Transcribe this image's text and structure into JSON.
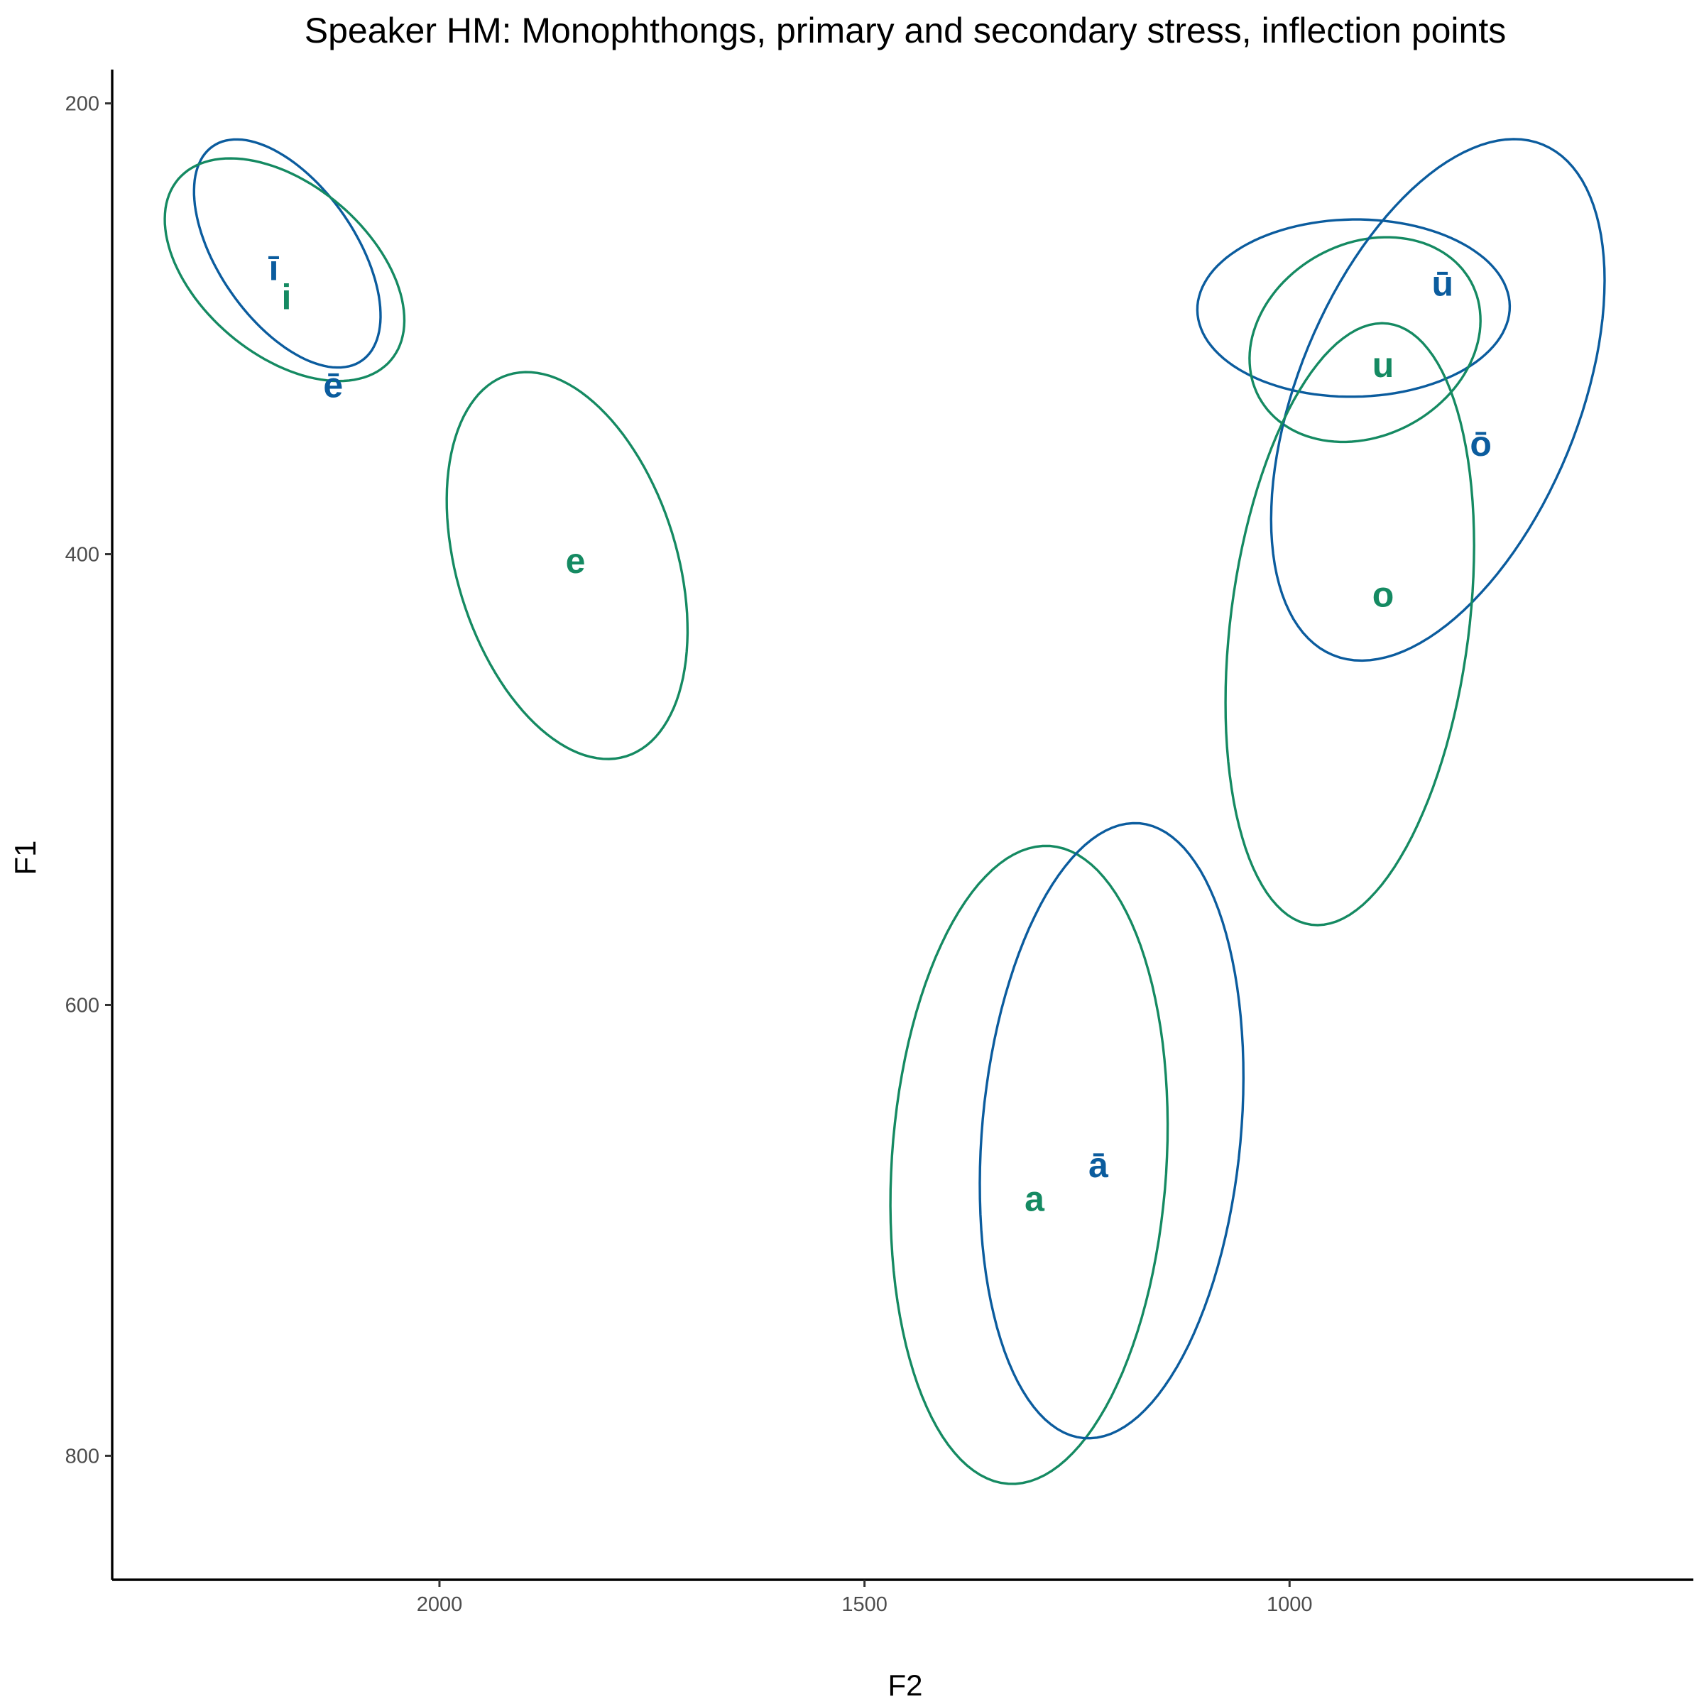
{
  "chart_data": {
    "type": "scatter",
    "title": "Speaker HM: Monophthongs, primary and secondary stress, inflection points",
    "xlabel": "F2",
    "ylabel": "F1",
    "x_reversed": true,
    "y_reversed": true,
    "xlim": [
      2385,
      525
    ],
    "ylim": [
      185,
      855
    ],
    "xticks": [
      2000,
      1500,
      1000
    ],
    "yticks": [
      200,
      400,
      600,
      800
    ],
    "grid": false,
    "legend": "none",
    "colors": {
      "primary": "#0B5C9E",
      "secondary": "#158A62"
    },
    "vowels": [
      {
        "label": "ī",
        "group": "primary",
        "f2": 2195,
        "f1": 273,
        "ellipse": [
          [
            2250,
            218
          ],
          [
            2150,
            232
          ],
          [
            2075,
            282
          ],
          [
            2120,
            318
          ],
          [
            2240,
            285
          ],
          [
            2290,
            247
          ]
        ]
      },
      {
        "label": "i",
        "group": "secondary",
        "f2": 2180,
        "f1": 286,
        "ellipse": [
          [
            2200,
            228
          ],
          [
            2100,
            250
          ],
          [
            2045,
            300
          ],
          [
            2110,
            324
          ],
          [
            2260,
            297
          ],
          [
            2320,
            264
          ]
        ]
      },
      {
        "label": "ē",
        "group": "primary",
        "f2": 2125,
        "f1": 325,
        "ellipse": [
          [
            1995,
            300
          ],
          [
            2080,
            320
          ],
          [
            2195,
            353
          ],
          [
            2265,
            366
          ],
          [
            2180,
            348
          ],
          [
            2060,
            316
          ]
        ]
      },
      {
        "label": "e",
        "group": "secondary",
        "f2": 1840,
        "f1": 403,
        "ellipse": [
          [
            1890,
            320
          ],
          [
            1710,
            420
          ],
          [
            1785,
            490
          ],
          [
            1950,
            442
          ],
          [
            1985,
            355
          ],
          [
            1935,
            322
          ]
        ]
      },
      {
        "label": "a",
        "group": "secondary",
        "f2": 1300,
        "f1": 686,
        "ellipse": [
          [
            1250,
            531
          ],
          [
            1145,
            655
          ],
          [
            1305,
            814
          ],
          [
            1400,
            790
          ],
          [
            1470,
            715
          ],
          [
            1370,
            551
          ]
        ]
      },
      {
        "label": "ā",
        "group": "primary",
        "f2": 1225,
        "f1": 671,
        "ellipse": [
          [
            1145,
            508
          ],
          [
            1070,
            590
          ],
          [
            1225,
            795
          ],
          [
            1310,
            762
          ],
          [
            1365,
            644
          ],
          [
            1210,
            548
          ]
        ]
      },
      {
        "label": "ū",
        "group": "primary",
        "f2": 820,
        "f1": 280,
        "ellipse": [
          [
            900,
            251
          ],
          [
            755,
            276
          ],
          [
            765,
            310
          ],
          [
            1025,
            324
          ],
          [
            1075,
            268
          ],
          [
            985,
            255
          ]
        ]
      },
      {
        "label": "u",
        "group": "secondary",
        "f2": 890,
        "f1": 316,
        "ellipse": [
          [
            900,
            262
          ],
          [
            785,
            318
          ],
          [
            860,
            338
          ],
          [
            960,
            352
          ],
          [
            1040,
            313
          ],
          [
            980,
            268
          ]
        ]
      },
      {
        "label": "ō",
        "group": "primary",
        "f2": 775,
        "f1": 351,
        "ellipse": [
          [
            695,
            215
          ],
          [
            635,
            272
          ],
          [
            745,
            405
          ],
          [
            955,
            442
          ],
          [
            1005,
            335
          ],
          [
            830,
            233
          ]
        ]
      },
      {
        "label": "o",
        "group": "secondary",
        "f2": 890,
        "f1": 418,
        "ellipse": [
          [
            830,
            313
          ],
          [
            785,
            374
          ],
          [
            860,
            528
          ],
          [
            1015,
            556
          ],
          [
            1075,
            460
          ],
          [
            1000,
            335
          ]
        ]
      }
    ]
  }
}
